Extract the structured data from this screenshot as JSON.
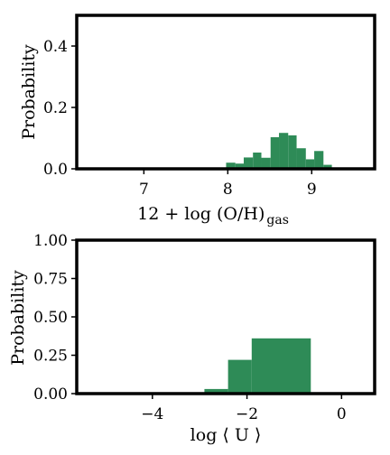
{
  "chart_data": [
    {
      "type": "bar",
      "xlabel_main": "12 + log (O/H)",
      "xlabel_sub": "gas",
      "ylabel": "Probability",
      "xlim": [
        6.2,
        9.75
      ],
      "ylim": [
        0,
        0.5
      ],
      "xticks": [
        7,
        8,
        9
      ],
      "xtick_labels": [
        "7",
        "8",
        "9"
      ],
      "yticks": [
        0,
        0.2,
        0.4
      ],
      "ytick_labels": [
        "0.0",
        "0.2",
        "0.4"
      ],
      "bar_color": "#2e8b57",
      "bins": [
        {
          "x0": 7.68,
          "x1": 7.79,
          "value": 0.004
        },
        {
          "x0": 7.79,
          "x1": 7.9,
          "value": 0.004
        },
        {
          "x0": 7.98,
          "x1": 8.09,
          "value": 0.02
        },
        {
          "x0": 8.09,
          "x1": 8.19,
          "value": 0.017
        },
        {
          "x0": 8.19,
          "x1": 8.3,
          "value": 0.037
        },
        {
          "x0": 8.3,
          "x1": 8.4,
          "value": 0.053
        },
        {
          "x0": 8.4,
          "x1": 8.51,
          "value": 0.036
        },
        {
          "x0": 8.51,
          "x1": 8.61,
          "value": 0.103
        },
        {
          "x0": 8.61,
          "x1": 8.72,
          "value": 0.117
        },
        {
          "x0": 8.72,
          "x1": 8.82,
          "value": 0.109
        },
        {
          "x0": 8.82,
          "x1": 8.93,
          "value": 0.067
        },
        {
          "x0": 8.93,
          "x1": 9.03,
          "value": 0.031
        },
        {
          "x0": 9.03,
          "x1": 9.14,
          "value": 0.058
        },
        {
          "x0": 9.14,
          "x1": 9.24,
          "value": 0.013
        }
      ]
    },
    {
      "type": "bar",
      "xlabel_main": "log ⟨ U ⟩",
      "ylabel": "Probability",
      "xlim": [
        -5.6,
        0.7
      ],
      "ylim": [
        0,
        1.0
      ],
      "xticks": [
        -4,
        -2,
        0
      ],
      "xtick_labels": [
        "−4",
        "−2",
        "0"
      ],
      "yticks": [
        0,
        0.25,
        0.5,
        0.75,
        1.0
      ],
      "ytick_labels": [
        "0.00",
        "0.25",
        "0.50",
        "0.75",
        "1.00"
      ],
      "bar_color": "#2e8b57",
      "bins": [
        {
          "x0": -2.9,
          "x1": -2.4,
          "value": 0.03
        },
        {
          "x0": -2.4,
          "x1": -1.9,
          "value": 0.22
        },
        {
          "x0": -1.9,
          "x1": -0.65,
          "value": 0.36
        }
      ]
    }
  ]
}
